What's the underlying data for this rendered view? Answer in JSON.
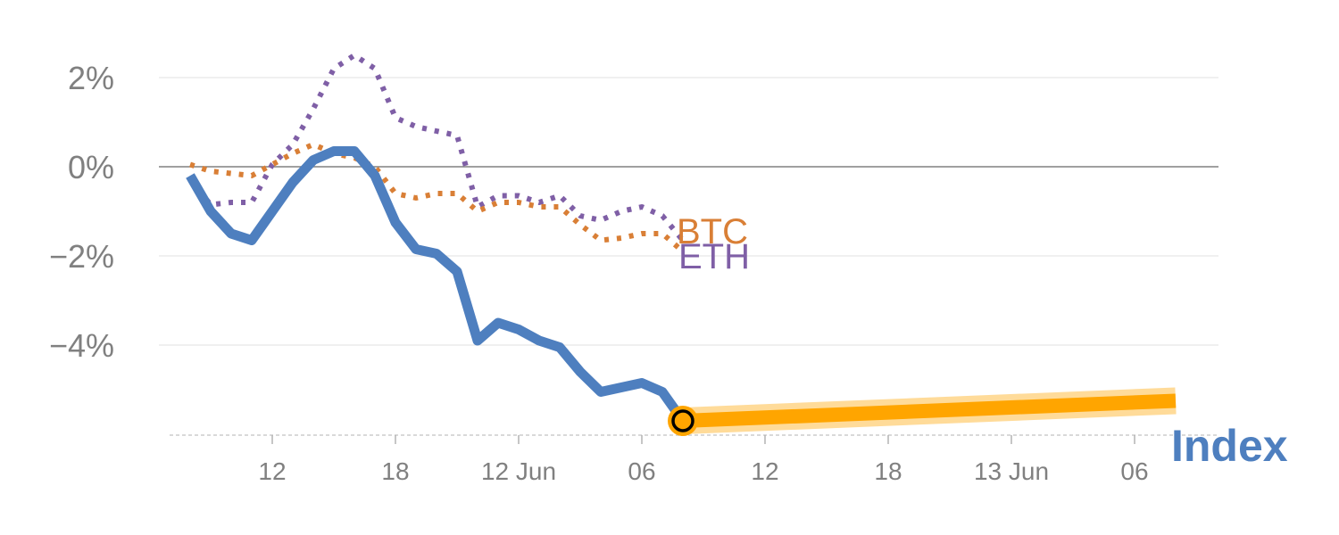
{
  "chart_data": {
    "type": "line",
    "x_units": "hours",
    "xlim": [
      -4.2,
      45
    ],
    "ylim": [
      -6,
      3
    ],
    "y_ticks": [
      {
        "value": 2,
        "label": "2%"
      },
      {
        "value": 0,
        "label": "0%"
      },
      {
        "value": -2,
        "label": "−2%"
      },
      {
        "value": -4,
        "label": "−4%"
      }
    ],
    "x_ticks": [
      {
        "value": 0,
        "label": "12"
      },
      {
        "value": 6,
        "label": "18"
      },
      {
        "value": 12,
        "label": "12 Jun"
      },
      {
        "value": 18,
        "label": "06"
      },
      {
        "value": 24,
        "label": "12"
      },
      {
        "value": 30,
        "label": "18"
      },
      {
        "value": 36,
        "label": "13 Jun"
      },
      {
        "value": 42,
        "label": "06"
      }
    ],
    "colors": {
      "index": "#4e7fbf",
      "btc": "#d97f36",
      "eth": "#7f5fa6",
      "forecast": "#ffa500",
      "forecast_glow": "#ffd27f",
      "axis_text": "#808080",
      "grid": "#e6e6e6",
      "zero_line": "#808080"
    },
    "series": [
      {
        "key": "index",
        "name": "Index",
        "style": "solid",
        "x": [
          -4,
          -3,
          -2,
          -1,
          0,
          1,
          2,
          3,
          4,
          5,
          6,
          7,
          8,
          9,
          10,
          11,
          12,
          13,
          14,
          15,
          16,
          17,
          18,
          19,
          20
        ],
        "y": [
          -0.2,
          -1.0,
          -1.5,
          -1.65,
          -1.0,
          -0.35,
          0.15,
          0.35,
          0.35,
          -0.2,
          -1.25,
          -1.85,
          -1.95,
          -2.35,
          -3.9,
          -3.5,
          -3.65,
          -3.9,
          -4.05,
          -4.6,
          -5.05,
          -4.95,
          -4.85,
          -5.05,
          -5.7
        ]
      },
      {
        "key": "btc",
        "name": "BTC",
        "style": "dotted",
        "x": [
          -4,
          -3,
          -2,
          -1,
          0,
          1,
          2,
          3,
          4,
          5,
          6,
          7,
          8,
          9,
          10,
          11,
          12,
          13,
          14,
          15,
          16,
          17,
          18,
          19,
          20
        ],
        "y": [
          0.05,
          -0.1,
          -0.15,
          -0.2,
          0.05,
          0.3,
          0.5,
          0.3,
          0.2,
          0.0,
          -0.6,
          -0.7,
          -0.6,
          -0.6,
          -1.0,
          -0.8,
          -0.8,
          -0.9,
          -0.9,
          -1.3,
          -1.65,
          -1.6,
          -1.5,
          -1.5,
          -1.9
        ]
      },
      {
        "key": "eth",
        "name": "ETH",
        "style": "dotted",
        "x": [
          -4,
          -3,
          -2,
          -1,
          0,
          1,
          2,
          3,
          4,
          5,
          6,
          7,
          8,
          9,
          10,
          11,
          12,
          13,
          14,
          15,
          16,
          17,
          18,
          19,
          20
        ],
        "y": [
          -0.3,
          -0.85,
          -0.8,
          -0.8,
          0.05,
          0.5,
          1.3,
          2.2,
          2.5,
          2.2,
          1.1,
          0.9,
          0.8,
          0.7,
          -0.9,
          -0.65,
          -0.65,
          -0.8,
          -0.65,
          -1.1,
          -1.2,
          -1.0,
          -0.9,
          -1.1,
          -1.65
        ]
      },
      {
        "key": "forecast",
        "name": "",
        "style": "solid",
        "x": [
          20,
          44
        ],
        "y": [
          -5.7,
          -5.25
        ]
      }
    ],
    "current_point": {
      "x": 20,
      "y": -5.7
    },
    "annotations": [
      {
        "key": "btc",
        "text": "BTC"
      },
      {
        "key": "eth",
        "text": "ETH"
      },
      {
        "key": "index",
        "text": "Index"
      }
    ],
    "grid": true,
    "legend": "none"
  }
}
